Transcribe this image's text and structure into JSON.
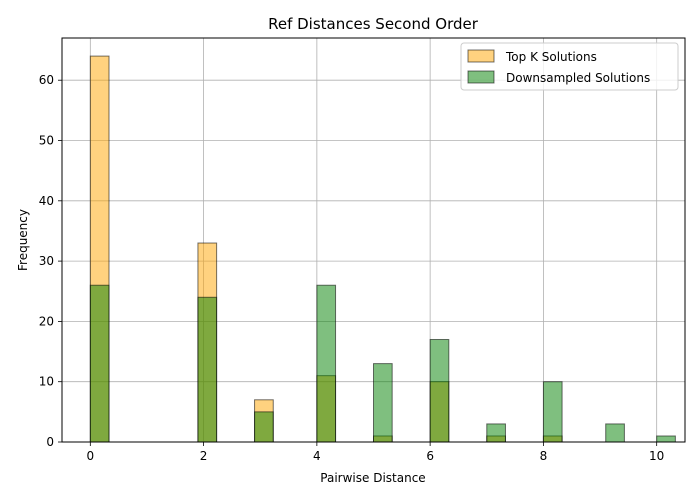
{
  "chart_data": {
    "type": "bar",
    "title": "Ref Distances Second Order",
    "xlabel": "Pairwise Distance",
    "ylabel": "Frequency",
    "xlim": [
      -0.5,
      10.5
    ],
    "ylim": [
      0,
      67
    ],
    "xticks": [
      0,
      2,
      4,
      6,
      8,
      10
    ],
    "yticks": [
      0,
      10,
      20,
      30,
      40,
      50,
      60
    ],
    "grid": true,
    "legend_position": "top-right",
    "bin_width": 0.33,
    "series": [
      {
        "name": "Top K Solutions",
        "color": "#ffa500",
        "points": [
          {
            "x": 0,
            "y": 64
          },
          {
            "x": 1.9,
            "y": 33
          },
          {
            "x": 2.9,
            "y": 7
          },
          {
            "x": 4,
            "y": 11
          },
          {
            "x": 5,
            "y": 1
          },
          {
            "x": 6,
            "y": 10
          },
          {
            "x": 7,
            "y": 1
          },
          {
            "x": 8,
            "y": 1
          }
        ]
      },
      {
        "name": "Downsampled Solutions",
        "color": "#008000",
        "points": [
          {
            "x": 0,
            "y": 26
          },
          {
            "x": 1.9,
            "y": 24
          },
          {
            "x": 2.9,
            "y": 5
          },
          {
            "x": 4,
            "y": 26
          },
          {
            "x": 5,
            "y": 13
          },
          {
            "x": 6,
            "y": 17
          },
          {
            "x": 7,
            "y": 3
          },
          {
            "x": 8,
            "y": 10
          },
          {
            "x": 9.1,
            "y": 3
          },
          {
            "x": 10,
            "y": 1
          }
        ]
      }
    ]
  }
}
